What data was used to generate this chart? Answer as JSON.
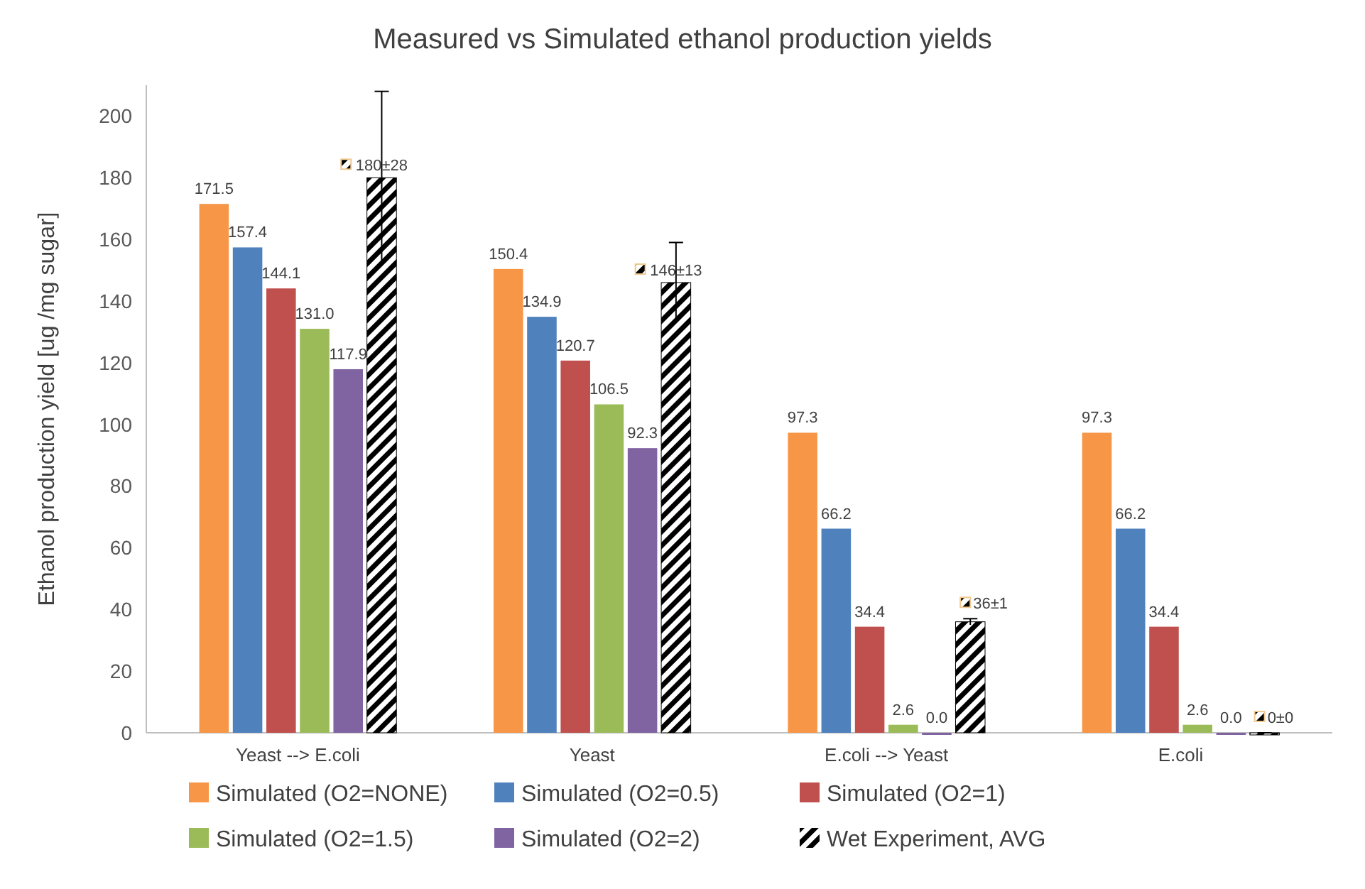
{
  "chart_data": {
    "type": "bar",
    "title": "Measured vs Simulated ethanol production yields",
    "ylabel": "Ethanol production yield [ug /mg sugar]",
    "categories": [
      "Yeast --> E.coli",
      "Yeast",
      "E.coli --> Yeast",
      "E.coli"
    ],
    "ylim": [
      0,
      210
    ],
    "yticks": [
      0,
      20,
      40,
      60,
      80,
      100,
      120,
      140,
      160,
      180,
      200
    ],
    "grid": false,
    "legend": "bottom",
    "series": [
      {
        "name": "Simulated (O2=NONE)",
        "color": "#f79646",
        "values": [
          171.5,
          150.4,
          97.3,
          97.3
        ],
        "value_labels": [
          "171.5",
          "150.4",
          "97.3",
          "97.3"
        ]
      },
      {
        "name": "Simulated (O2=0.5)",
        "color": "#4f81bd",
        "values": [
          157.4,
          134.9,
          66.2,
          66.2
        ],
        "value_labels": [
          "157.4",
          "134.9",
          "66.2",
          "66.2"
        ]
      },
      {
        "name": "Simulated (O2=1)",
        "color": "#c0504d",
        "values": [
          144.1,
          120.7,
          34.4,
          34.4
        ],
        "value_labels": [
          "144.1",
          "120.7",
          "34.4",
          "34.4"
        ]
      },
      {
        "name": "Simulated (O2=1.5)",
        "color": "#9bbb59",
        "values": [
          131.0,
          106.5,
          2.6,
          2.6
        ],
        "value_labels": [
          "131.0",
          "106.5",
          "2.6",
          "2.6"
        ]
      },
      {
        "name": "Simulated (O2=2)",
        "color": "#8064a2",
        "values": [
          117.9,
          92.3,
          0.0,
          0.0
        ],
        "value_labels": [
          "117.9",
          "92.3",
          "0.0",
          "0.0"
        ]
      },
      {
        "name": "Wet Experiment, AVG",
        "color": "#000000",
        "values": [
          180,
          146,
          36,
          0
        ],
        "errors": [
          28,
          13,
          1,
          0
        ],
        "value_labels": [
          "180±28",
          "146±13",
          "36±1",
          "0±0"
        ]
      }
    ]
  }
}
